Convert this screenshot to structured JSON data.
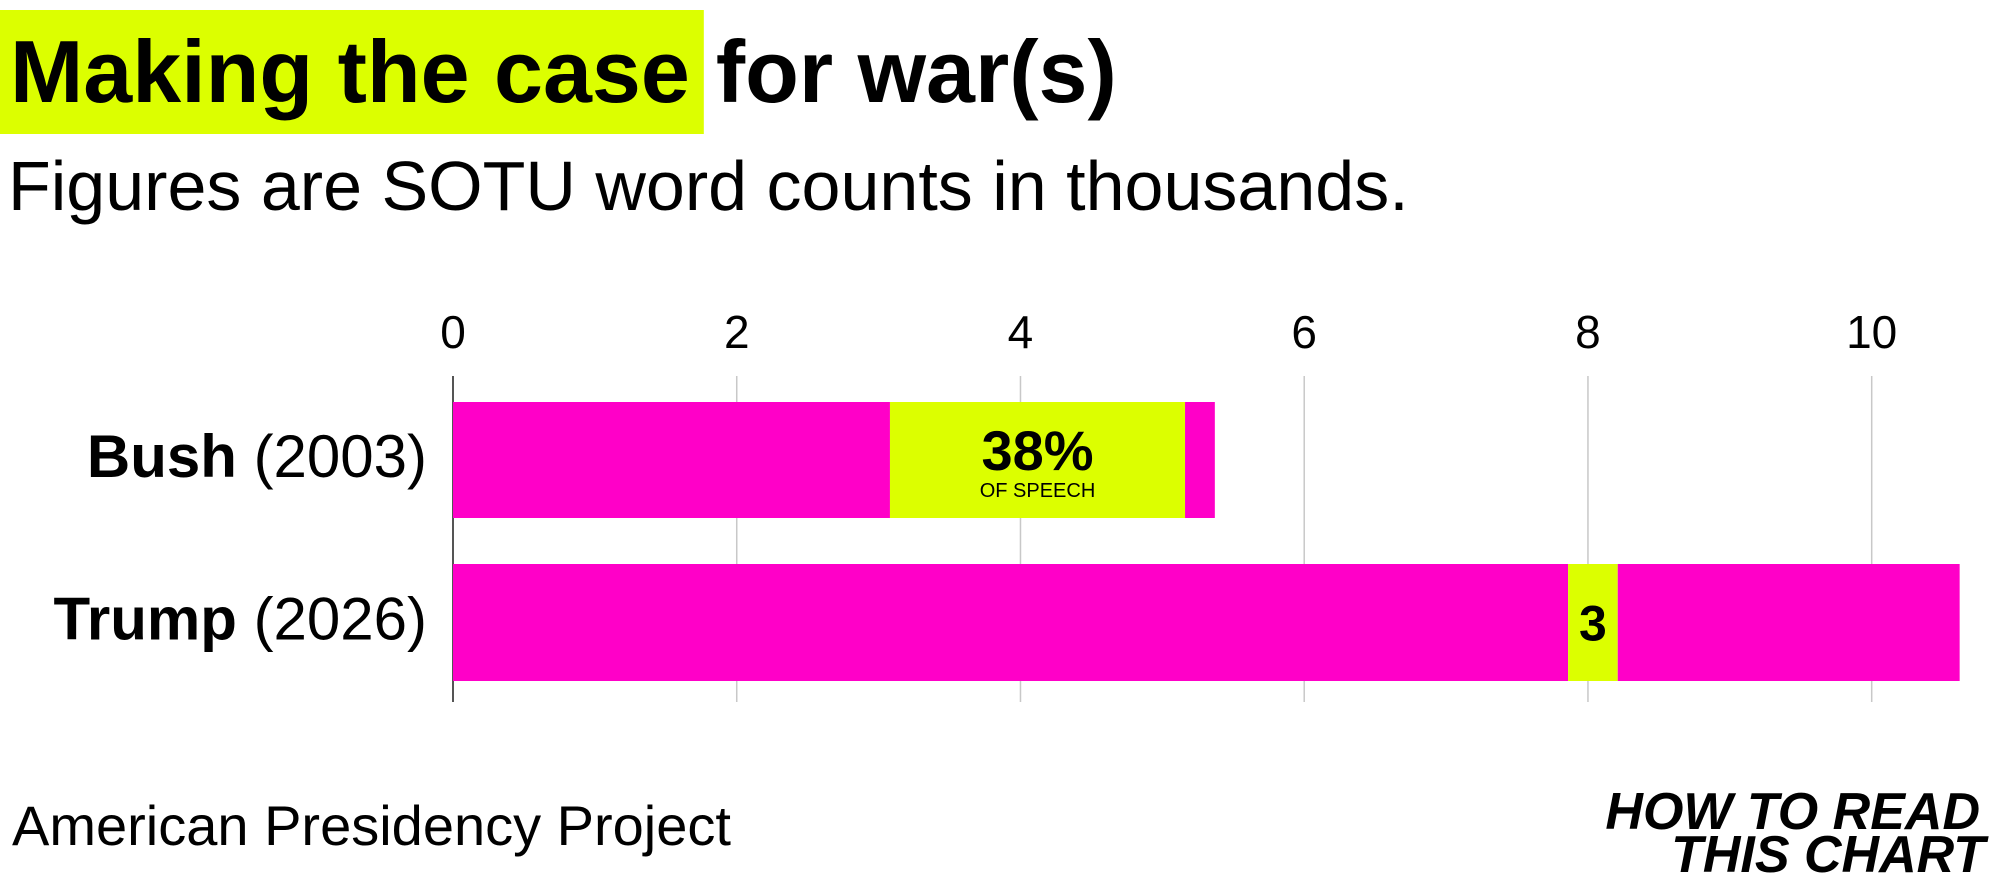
{
  "chart_data": {
    "type": "stacked-barh",
    "title": {
      "highlight": "Making the case",
      "rest": "for war(s)"
    },
    "subtitle": "Figures are SOTU word counts in thousands.",
    "categories": [
      "Bush",
      "Trump"
    ],
    "category_years": [
      "(2003)",
      "(2026)"
    ],
    "series": [
      {
        "color": "#ff00c8",
        "values": [
          3.08,
          7.86
        ]
      },
      {
        "color": "#dcff00",
        "values": [
          2.08,
          0.35
        ]
      },
      {
        "color": "#ff00c8",
        "values": [
          0.21,
          2.41
        ]
      }
    ],
    "annotations": [
      {
        "text": "38%",
        "subtext": "OF SPEECH"
      },
      {
        "text": "3"
      }
    ],
    "xlim": [
      0,
      10.7
    ],
    "xticks": [
      0,
      2,
      4,
      6,
      8,
      10
    ],
    "grid": true,
    "source": "American Presidency Project",
    "brand": [
      "HOW TO READ",
      "THIS CHART"
    ],
    "brand_color": "#00c8f0",
    "highlight_color": "#dcff00"
  }
}
